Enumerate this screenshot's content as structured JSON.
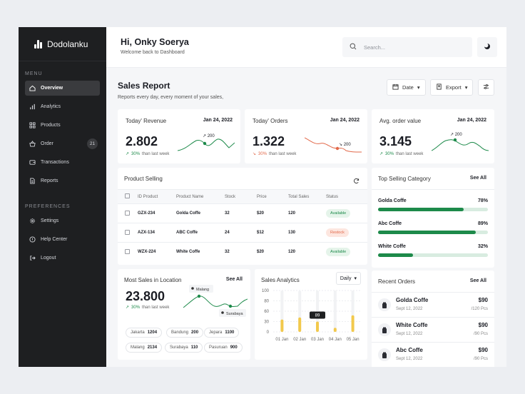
{
  "sidebar": {
    "brand": "Dodolanku",
    "menu_label": "MENU",
    "prefs_label": "PREFERENCES",
    "items": [
      {
        "label": "Overview",
        "icon": "home-icon"
      },
      {
        "label": "Analytics",
        "icon": "bar-chart-icon"
      },
      {
        "label": "Products",
        "icon": "grid-icon"
      },
      {
        "label": "Order",
        "icon": "basket-icon",
        "badge": "21"
      },
      {
        "label": "Transactions",
        "icon": "wallet-icon"
      },
      {
        "label": "Reports",
        "icon": "document-icon"
      }
    ],
    "prefs": [
      {
        "label": "Settings",
        "icon": "gear-icon"
      },
      {
        "label": "Help Center",
        "icon": "help-icon"
      },
      {
        "label": "Logout",
        "icon": "logout-icon"
      }
    ]
  },
  "topbar": {
    "title": "Hi, Onky Soerya",
    "subtitle": "Welcome back to Dashboard",
    "search_placeholder": "Search..."
  },
  "header": {
    "title": "Sales Report",
    "subtitle": "Reports every day, every moment of your sales,",
    "date_label": "Date",
    "export_label": "Export"
  },
  "kpis": [
    {
      "title": "Today' Revenue",
      "date": "Jan 24, 2022",
      "value": "2.802",
      "delta": "30%",
      "delta_text": "than last week",
      "trend": "up",
      "tooltip": "200",
      "color": "#1d8a4a"
    },
    {
      "title": "Today' Orders",
      "date": "Jan 24, 2022",
      "value": "1.322",
      "delta": "30%",
      "delta_text": "than last week",
      "trend": "down",
      "tooltip": "200",
      "color": "#e2694a"
    },
    {
      "title": "Avg. order value",
      "date": "Jan 24, 2022",
      "value": "3.145",
      "delta": "30%",
      "delta_text": "than last week",
      "trend": "up",
      "tooltip": "200",
      "color": "#1d8a4a"
    }
  ],
  "product_selling": {
    "title": "Product Selling",
    "columns": [
      "ID Product",
      "Product Name",
      "Stock",
      "Price",
      "Total Sales",
      "Status"
    ],
    "rows": [
      {
        "id": "GZX-234",
        "name": "Golda Coffe",
        "stock": "32",
        "price": "$20",
        "sales": "120",
        "status": "Available"
      },
      {
        "id": "AZX-134",
        "name": "ABC Coffe",
        "stock": "24",
        "price": "$12",
        "sales": "130",
        "status": "Restock"
      },
      {
        "id": "WZX-224",
        "name": "White Coffe",
        "stock": "32",
        "price": "$20",
        "sales": "120",
        "status": "Available"
      }
    ]
  },
  "top_category": {
    "title": "Top Selling Category",
    "see_all": "See All",
    "items": [
      {
        "name": "Golda Coffe",
        "pct": "78%",
        "value": 0.78
      },
      {
        "name": "Abc Coffe",
        "pct": "89%",
        "value": 0.89
      },
      {
        "name": "White Coffe",
        "pct": "32%",
        "value": 0.32
      }
    ]
  },
  "location": {
    "title": "Most Sales in Location",
    "see_all": "See All",
    "value": "23.800",
    "delta": "30%",
    "delta_text": "than last week",
    "tag1": "Malang",
    "tag2": "Surabaya",
    "chips": [
      {
        "city": "Jakarta",
        "value": "1204"
      },
      {
        "city": "Bandung",
        "value": "200"
      },
      {
        "city": "Jepara",
        "value": "1100"
      },
      {
        "city": "Malang",
        "value": "2134"
      },
      {
        "city": "Surabaya",
        "value": "110"
      },
      {
        "city": "Pasuruan",
        "value": "900"
      }
    ]
  },
  "analytics": {
    "title": "Sales Analytics",
    "range": "Daily",
    "tooltip": "89"
  },
  "chart_data": {
    "type": "bar",
    "title": "Sales Analytics",
    "categories": [
      "01 Jan",
      "02 Jan",
      "03 Jan",
      "04 Jan",
      "05 Jan"
    ],
    "yticks": [
      "100",
      "80",
      "60",
      "30",
      "0"
    ],
    "ylim": [
      0,
      100
    ],
    "series": [
      {
        "values": [
          30,
          35,
          25,
          10,
          40
        ]
      }
    ]
  },
  "recent_orders": {
    "title": "Recent Orders",
    "see_all": "See All",
    "items": [
      {
        "name": "Golda Coffe",
        "date": "Sept 12, 2022",
        "price": "$90",
        "qty": "/120 Pcs"
      },
      {
        "name": "White Coffe",
        "date": "Sept 12, 2022",
        "price": "$90",
        "qty": "/90 Pcs"
      },
      {
        "name": "Abc Coffe",
        "date": "Sept 12, 2022",
        "price": "$90",
        "qty": "/90 Pcs"
      }
    ]
  }
}
